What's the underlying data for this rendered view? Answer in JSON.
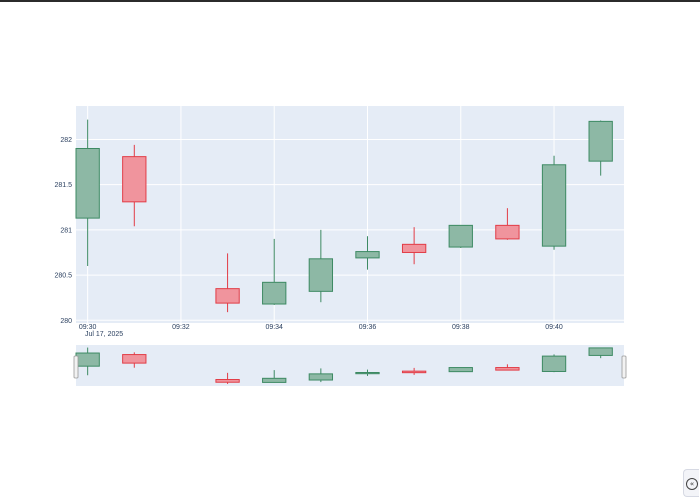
{
  "chart_data": {
    "type": "candlestick",
    "x": [
      "09:30",
      "09:31",
      "09:33",
      "09:34",
      "09:35",
      "09:36",
      "09:37",
      "09:38",
      "09:39",
      "09:40",
      "09:41"
    ],
    "open": [
      281.13,
      281.81,
      280.35,
      280.18,
      280.32,
      280.69,
      280.84,
      280.81,
      281.05,
      280.82,
      281.76
    ],
    "high": [
      282.22,
      281.94,
      280.74,
      280.9,
      281.0,
      280.93,
      281.03,
      281.05,
      281.24,
      281.82,
      282.21
    ],
    "low": [
      280.6,
      281.04,
      280.09,
      280.17,
      280.2,
      280.56,
      280.62,
      280.8,
      280.89,
      280.78,
      281.6
    ],
    "close": [
      281.9,
      281.31,
      280.19,
      280.42,
      280.68,
      280.76,
      280.75,
      281.05,
      280.9,
      281.72,
      282.2
    ],
    "ylim": [
      279.97,
      282.37
    ],
    "xlim": [
      "09:29:45",
      "09:41:30"
    ],
    "y_ticks": [
      {
        "label": "280",
        "value": 280
      },
      {
        "label": "280.5",
        "value": 280.5
      },
      {
        "label": "281",
        "value": 281
      },
      {
        "label": "281.5",
        "value": 281.5
      },
      {
        "label": "282",
        "value": 282
      }
    ],
    "x_ticks": [
      {
        "label": "09:30",
        "value": "09:30"
      },
      {
        "label": "09:32",
        "value": "09:32"
      },
      {
        "label": "09:34",
        "value": "09:34"
      },
      {
        "label": "09:36",
        "value": "09:36"
      },
      {
        "label": "09:38",
        "value": "09:38"
      },
      {
        "label": "09:40",
        "value": "09:40"
      }
    ],
    "date_label": "Jul 17, 2025",
    "grid": true,
    "rangeslider": true,
    "colors": {
      "increasing_fill": "#8db8a5",
      "increasing_line": "#3d8a63",
      "decreasing_fill": "#f0949d",
      "decreasing_line": "#e23c46",
      "plot_bg": "#e5ecf6",
      "grid": "#ffffff",
      "tick_text": "#2a3f5f"
    }
  },
  "icons": {
    "collapse": "collapse-left-icon",
    "collapse_glyph": "«"
  }
}
